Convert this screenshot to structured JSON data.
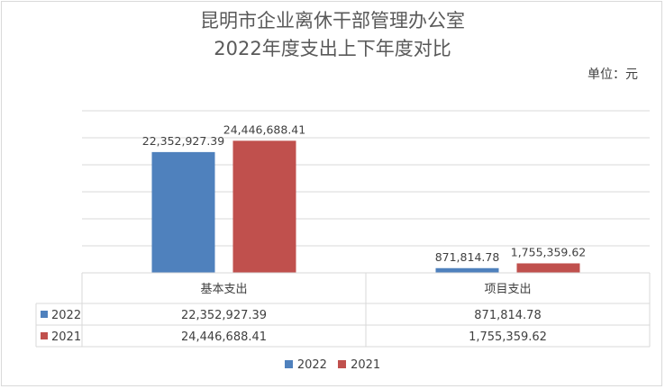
{
  "chart_data": {
    "type": "bar",
    "title_line1": "昆明市企业离休干部管理办公室",
    "title_line2": "2022年度支出上下年度对比",
    "unit_label": "单位：元",
    "categories": [
      "基本支出",
      "项目支出"
    ],
    "series": [
      {
        "name": "2022",
        "color": "#4f81bd",
        "values": [
          22352927.39,
          871814.78
        ],
        "labels": [
          "22,352,927.39",
          "871,814.78"
        ]
      },
      {
        "name": "2021",
        "color": "#c0504d",
        "values": [
          24446688.41,
          1755359.62
        ],
        "labels": [
          "24,446,688.41",
          "1,755,359.62"
        ]
      }
    ],
    "ylim": [
      0,
      30000000
    ],
    "grid": true,
    "legend": "bottom",
    "data_table": true
  }
}
